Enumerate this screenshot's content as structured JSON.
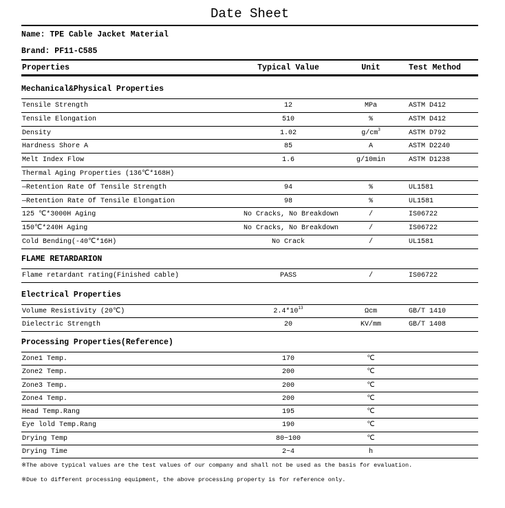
{
  "title": "Date Sheet",
  "name": "Name: TPE Cable Jacket Material",
  "brand": "Brand: PF11-C585",
  "header": {
    "properties": "Properties",
    "value": "Typical Value",
    "unit": "Unit",
    "method": "Test Method"
  },
  "sections": [
    {
      "title": "Mechanical&Physical Properties",
      "rows": [
        {
          "prop": "Tensile Strength",
          "value": "12",
          "unit": "MPa",
          "method": "ASTM D412"
        },
        {
          "prop": "Tensile Elongation",
          "value": "510",
          "unit": "%",
          "method": "ASTM D412"
        },
        {
          "prop": "Density",
          "value": "1.02",
          "unit": "g/cm",
          "unit_sup": "3",
          "method": "ASTM D792"
        },
        {
          "prop": "Hardness Shore A",
          "value": "85",
          "unit": "A",
          "method": "ASTM D2240"
        },
        {
          "prop": "Melt Index Flow",
          "value": "1.6",
          "unit": "g/10min",
          "method": "ASTM D1238"
        },
        {
          "prop": "Thermal Aging Properties (136℃*168H)",
          "value": "",
          "unit": "",
          "method": ""
        },
        {
          "prop": "—Retention Rate Of Tensile Strength",
          "value": "94",
          "unit": "%",
          "method": "UL1581"
        },
        {
          "prop": "—Retention Rate Of Tensile Elongation",
          "value": "98",
          "unit": "%",
          "method": "UL1581"
        },
        {
          "prop": "125 ℃*3000H Aging",
          "value": "No Cracks, No Breakdown",
          "unit": "/",
          "method": "IS06722"
        },
        {
          "prop": "150℃*240H Aging",
          "value": "No Cracks, No Breakdown",
          "unit": "/",
          "method": "IS06722"
        },
        {
          "prop": "Cold Bending(-40℃*16H)",
          "value": "No Crack",
          "unit": "/",
          "method": "UL1581"
        }
      ]
    },
    {
      "title": "FLAME RETARDARION",
      "rows": [
        {
          "prop": "Flame retardant rating(Finished cable)",
          "value": "PASS",
          "unit": "/",
          "method": "IS06722"
        }
      ]
    },
    {
      "title": "Electrical Properties",
      "rows": [
        {
          "prop": "Volume Resistivity (20℃)",
          "value": "2.4*10",
          "value_sup": "13",
          "unit": "Ωcm",
          "method": " GB/T 1410"
        },
        {
          "prop": "Dielectric Strength",
          "value": "20",
          "unit": "KV/mm",
          "method": " GB/T 1408"
        }
      ]
    },
    {
      "title": "Processing Properties(Reference)",
      "rows": [
        {
          "prop": "Zone1 Temp.",
          "value": "170",
          "unit": "℃",
          "method": ""
        },
        {
          "prop": "Zone2 Temp.",
          "value": "200",
          "unit": "℃",
          "method": ""
        },
        {
          "prop": "Zone3 Temp.",
          "value": "200",
          "unit": "℃",
          "method": ""
        },
        {
          "prop": "Zone4 Temp.",
          "value": "200",
          "unit": "℃",
          "method": ""
        },
        {
          "prop": "Head Temp.Rang",
          "value": "195",
          "unit": "℃",
          "method": ""
        },
        {
          "prop": "Eye lold Temp.Rang",
          "value": "190",
          "unit": "℃",
          "method": ""
        },
        {
          "prop": "Drying Temp",
          "value": "80~100",
          "unit": "℃",
          "method": ""
        },
        {
          "prop": "Drying Time",
          "value": "2~4",
          "unit": "h",
          "method": ""
        }
      ]
    }
  ],
  "notes": [
    "※The above typical values are the test values of our company and shall not be used as the basis for evaluation.",
    "※Due to different processing equipment, the above processing property is for reference only."
  ]
}
